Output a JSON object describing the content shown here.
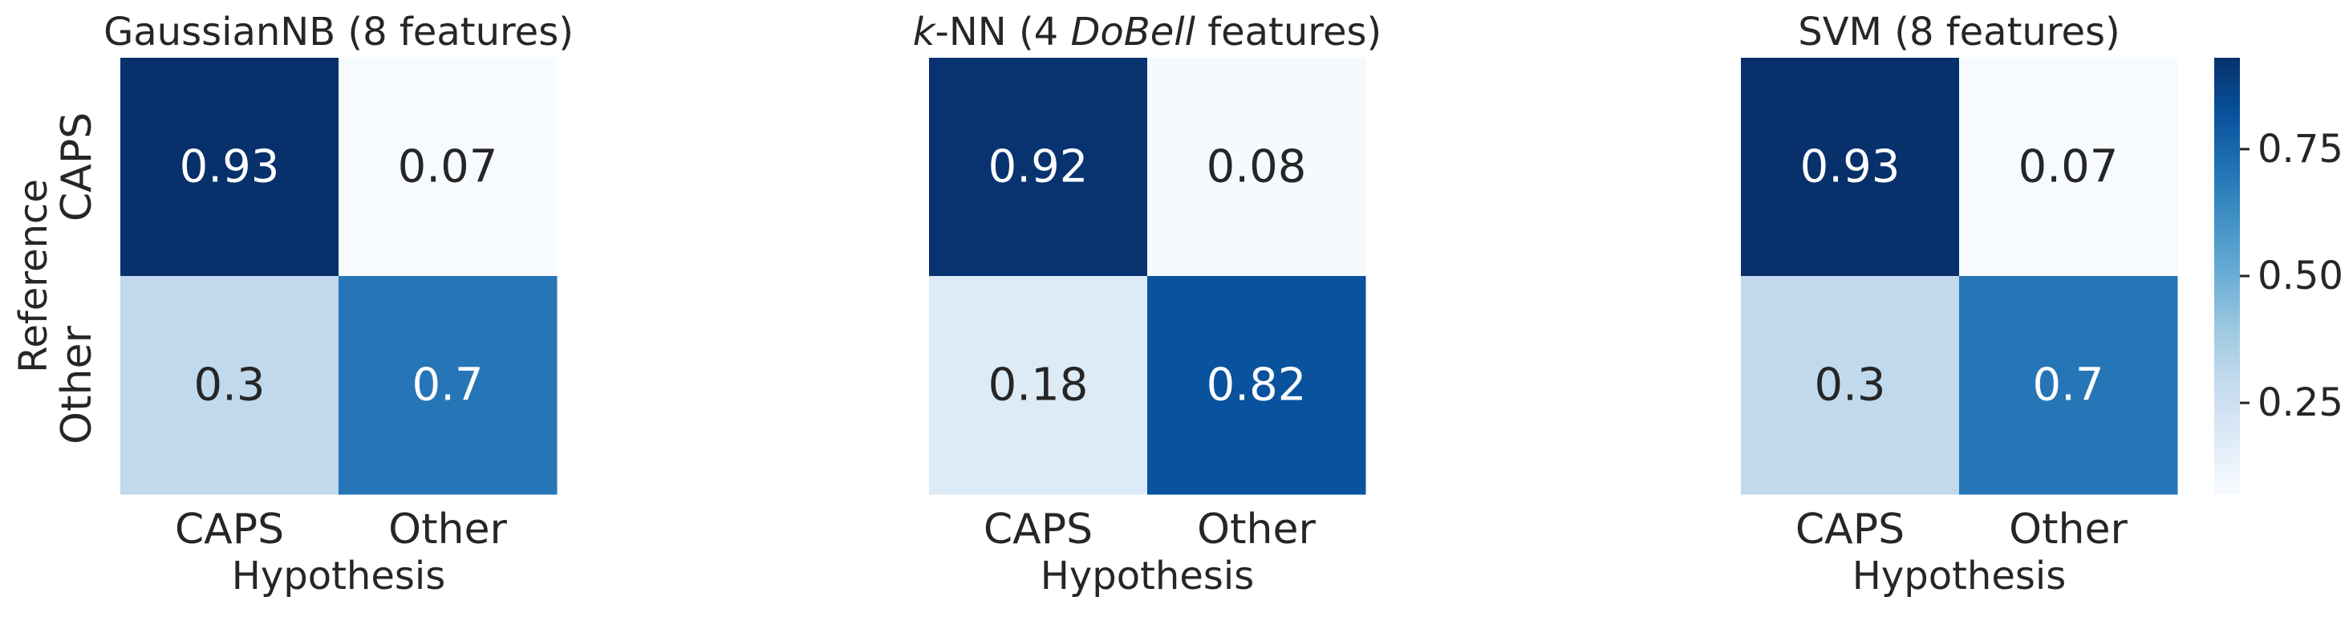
{
  "chart_data": [
    {
      "type": "heatmap",
      "title": "GaussianNB (8 features)",
      "xlabel": "Hypothesis",
      "ylabel": "Reference",
      "x_categories": [
        "CAPS",
        "Other"
      ],
      "y_categories": [
        "CAPS",
        "Other"
      ],
      "values": [
        [
          0.93,
          0.07
        ],
        [
          0.3,
          0.7
        ]
      ],
      "cell_labels": [
        [
          "0.93",
          "0.07"
        ],
        [
          "0.3",
          "0.7"
        ]
      ]
    },
    {
      "type": "heatmap",
      "title_parts": [
        {
          "text": "k",
          "italic": true
        },
        {
          "text": "-NN (4 ",
          "italic": false
        },
        {
          "text": "DoBell",
          "italic": true
        },
        {
          "text": " features)",
          "italic": false
        }
      ],
      "xlabel": "Hypothesis",
      "x_categories": [
        "CAPS",
        "Other"
      ],
      "y_categories": [
        "CAPS",
        "Other"
      ],
      "values": [
        [
          0.92,
          0.08
        ],
        [
          0.18,
          0.82
        ]
      ],
      "cell_labels": [
        [
          "0.92",
          "0.08"
        ],
        [
          "0.18",
          "0.82"
        ]
      ]
    },
    {
      "type": "heatmap",
      "title": "SVM (8 features)",
      "xlabel": "Hypothesis",
      "x_categories": [
        "CAPS",
        "Other"
      ],
      "y_categories": [
        "CAPS",
        "Other"
      ],
      "values": [
        [
          0.93,
          0.07
        ],
        [
          0.3,
          0.7
        ]
      ],
      "cell_labels": [
        [
          "0.93",
          "0.07"
        ],
        [
          "0.3",
          "0.7"
        ]
      ]
    }
  ],
  "colorbar": {
    "colormap": "Blues",
    "range": [
      0.07,
      0.93
    ],
    "ticks": [
      0.25,
      0.5,
      0.75
    ],
    "tick_labels": [
      "0.25",
      "0.50",
      "0.75"
    ]
  },
  "colors": {
    "ramp": [
      "#f7fbff",
      "#deebf7",
      "#c6dbef",
      "#9ecae1",
      "#6baed6",
      "#4292c6",
      "#2171b5",
      "#08519c",
      "#08306b"
    ],
    "dark_text": "#262626",
    "light_text": "#ffffff"
  }
}
